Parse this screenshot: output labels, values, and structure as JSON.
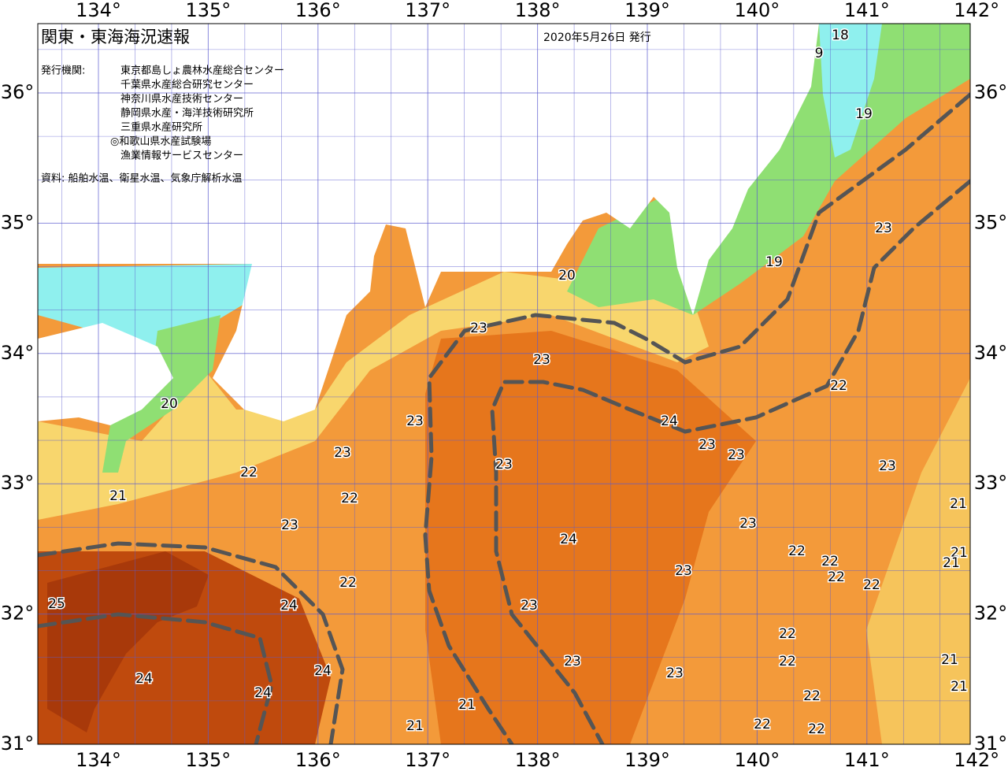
{
  "header": {
    "title": "関東・東海海況速報",
    "date": "2020年5月26日 発行"
  },
  "agencies": {
    "label": "発行機関:",
    "items": [
      "東京都島しょ農林水産総合センター",
      "千葉県水産総合研究センター",
      "神奈川県水産技術センター",
      "静岡県水産・海洋技術研究所",
      "三重県水産研究所",
      "◎和歌山県水産試験場",
      "漁業情報サービスセンター"
    ]
  },
  "source": "資料: 船舶水温、衛星水温、気象庁解析水温",
  "longitudes": [
    "134°",
    "135°",
    "136°",
    "137°",
    "138°",
    "139°",
    "140°",
    "141°",
    "142°"
  ],
  "latitudes": [
    "36°",
    "35°",
    "34°",
    "33°",
    "32°",
    "31°"
  ],
  "contour_labels": [
    "18",
    "9",
    "19",
    "23",
    "19",
    "20",
    "23",
    "23",
    "22",
    "20",
    "23",
    "24",
    "23",
    "23",
    "23",
    "22",
    "23",
    "23",
    "21",
    "22",
    "21",
    "23",
    "23",
    "24",
    "22",
    "22",
    "21",
    "21",
    "23",
    "22",
    "22",
    "22",
    "25",
    "24",
    "23",
    "22",
    "22",
    "23",
    "21",
    "24",
    "23",
    "24",
    "24",
    "21",
    "22",
    "21",
    "21",
    "22",
    "22"
  ]
}
